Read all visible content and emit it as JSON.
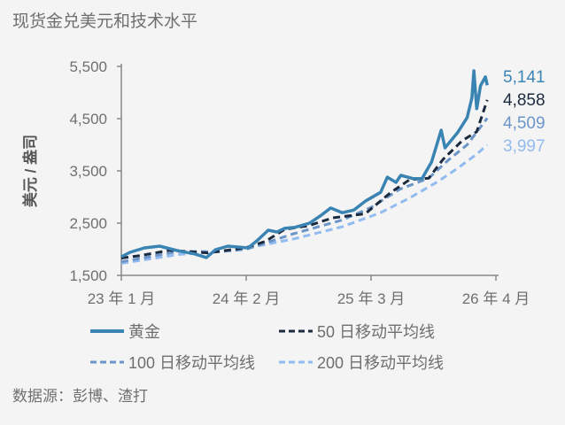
{
  "chart_data": {
    "type": "line",
    "title": "现货金兑美元和技术水平",
    "ylabel": "美元 / 盎司",
    "xlabel": "",
    "ylim": [
      1500,
      5500
    ],
    "yticks": [
      1500,
      2500,
      3500,
      4500,
      5500
    ],
    "ytick_labels": [
      "1,500",
      "2,500",
      "3,500",
      "4,500",
      "5,500"
    ],
    "x_unit": "months since Jan 2023",
    "xlim": [
      0,
      39.5
    ],
    "xticks": [
      0,
      13,
      26,
      39
    ],
    "xtick_labels": [
      "23 年 1 月",
      "24 年 2 月",
      "25 年 3 月",
      "26 年 4 月"
    ],
    "grid": false,
    "legend_placement": "bottom",
    "series": [
      {
        "name": "黄金",
        "color": "#3a84b4",
        "style": "solid",
        "end_label": "5,141",
        "points": [
          [
            0,
            1856
          ],
          [
            0.9,
            1940
          ],
          [
            2.4,
            2025
          ],
          [
            4.0,
            2060
          ],
          [
            5.8,
            1975
          ],
          [
            7.65,
            1910
          ],
          [
            8.85,
            1840
          ],
          [
            9.8,
            1990
          ],
          [
            11.1,
            2060
          ],
          [
            13.2,
            2025
          ],
          [
            14.1,
            2160
          ],
          [
            15.3,
            2365
          ],
          [
            16.2,
            2330
          ],
          [
            17,
            2400
          ],
          [
            18.1,
            2420
          ],
          [
            19.6,
            2500
          ],
          [
            20.8,
            2650
          ],
          [
            21.8,
            2790
          ],
          [
            23.0,
            2700
          ],
          [
            24.2,
            2750
          ],
          [
            25.4,
            2920
          ],
          [
            27.0,
            3090
          ],
          [
            27.7,
            3380
          ],
          [
            28.6,
            3280
          ],
          [
            29.1,
            3415
          ],
          [
            30.4,
            3350
          ],
          [
            31.3,
            3350
          ],
          [
            32.3,
            3670
          ],
          [
            33.3,
            4280
          ],
          [
            33.7,
            3940
          ],
          [
            35.0,
            4230
          ],
          [
            36.0,
            4520
          ],
          [
            36.5,
            4900
          ],
          [
            36.7,
            5415
          ],
          [
            37.0,
            4690
          ],
          [
            37.4,
            5130
          ],
          [
            37.9,
            5300
          ],
          [
            38.1,
            5141
          ]
        ]
      },
      {
        "name": "50 日移动平均线",
        "color": "#1b2a3e",
        "style": "dash",
        "end_label": "4,858",
        "points": [
          [
            0,
            1830
          ],
          [
            2,
            1880
          ],
          [
            5,
            1980
          ],
          [
            9,
            1930
          ],
          [
            13,
            2030
          ],
          [
            15,
            2150
          ],
          [
            17,
            2380
          ],
          [
            19.5,
            2450
          ],
          [
            22,
            2600
          ],
          [
            25.4,
            2680
          ],
          [
            28,
            3080
          ],
          [
            30,
            3330
          ],
          [
            32,
            3360
          ],
          [
            33.5,
            3720
          ],
          [
            35.5,
            4080
          ],
          [
            37,
            4250
          ],
          [
            38.1,
            4858
          ]
        ]
      },
      {
        "name": "100 日移动平均线",
        "color": "#6b95c8",
        "style": "dash",
        "end_label": "4,509",
        "points": [
          [
            0,
            1760
          ],
          [
            6,
            1960
          ],
          [
            10,
            1950
          ],
          [
            13,
            2000
          ],
          [
            18,
            2300
          ],
          [
            23,
            2560
          ],
          [
            26,
            2800
          ],
          [
            29,
            3150
          ],
          [
            32,
            3360
          ],
          [
            34,
            3700
          ],
          [
            36,
            4000
          ],
          [
            38.1,
            4509
          ]
        ]
      },
      {
        "name": "200 日移动平均线",
        "color": "#92bbef",
        "style": "dash",
        "end_label": "3,997",
        "points": [
          [
            0,
            1730
          ],
          [
            6,
            1900
          ],
          [
            12,
            1980
          ],
          [
            18,
            2200
          ],
          [
            23,
            2430
          ],
          [
            27,
            2700
          ],
          [
            30,
            2980
          ],
          [
            33,
            3300
          ],
          [
            35,
            3550
          ],
          [
            37,
            3820
          ],
          [
            38.1,
            3997
          ]
        ]
      }
    ],
    "source": "数据源：彭博、渣打"
  }
}
